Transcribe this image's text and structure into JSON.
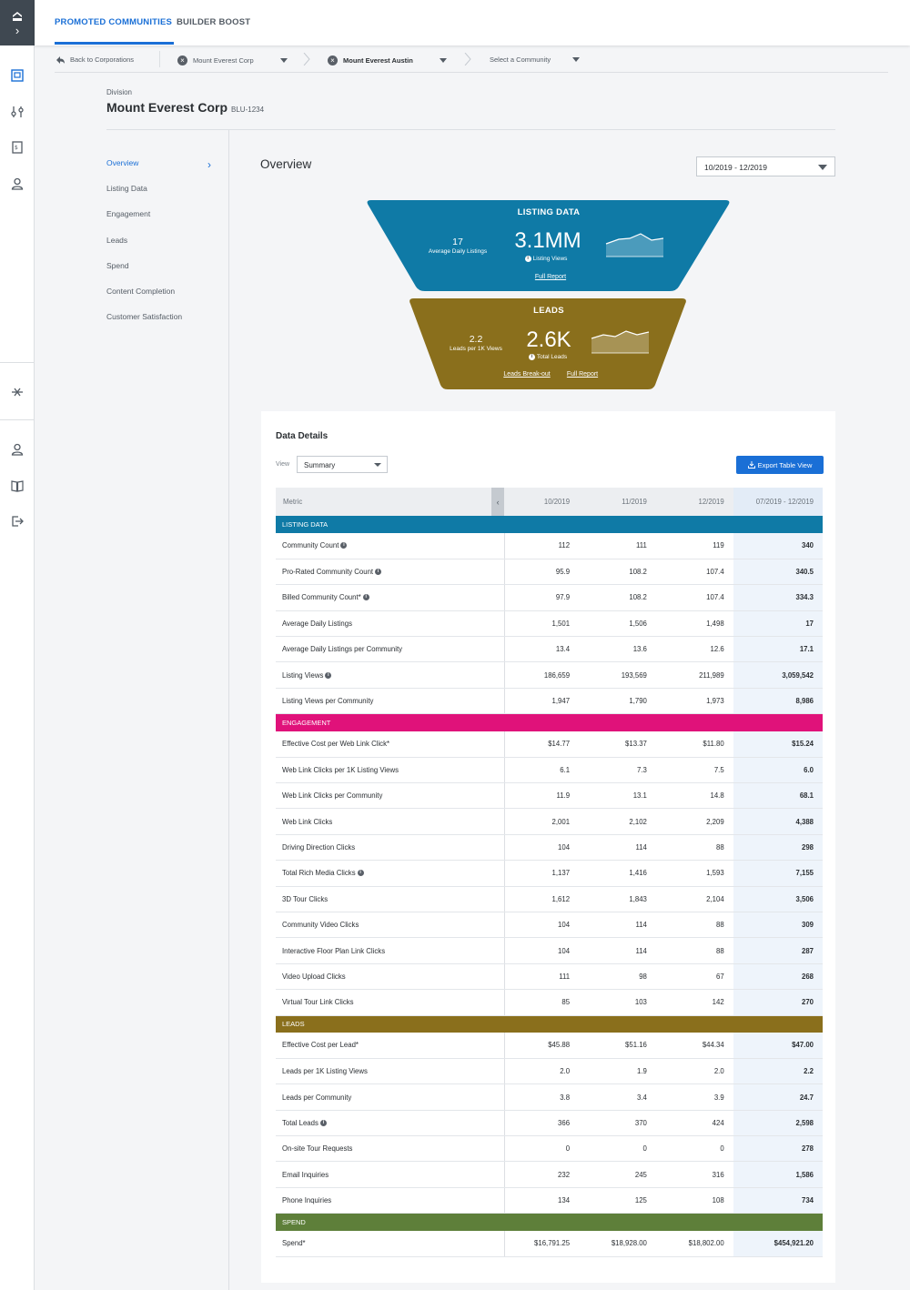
{
  "colors": {
    "accent": "#1a6fd6",
    "listing": "#0f7aa6",
    "engagement": "#e0127a",
    "leads": "#8a6f1c",
    "spend": "#5e7f3a"
  },
  "header": {
    "tabs": [
      {
        "label": "PROMOTED COMMUNITIES",
        "active": true
      },
      {
        "label": "BUILDER BOOST",
        "active": false
      }
    ]
  },
  "breadcrumb": {
    "back": "Back to Corporations",
    "corp": "Mount Everest Corp",
    "division": "Mount Everest Austin",
    "community_placeholder": "Select a Community"
  },
  "division": {
    "label": "Division",
    "name": "Mount Everest Corp",
    "id": "BLU-1234"
  },
  "sidenav": {
    "items": [
      {
        "label": "Overview",
        "active": true
      },
      {
        "label": "Listing Data"
      },
      {
        "label": "Engagement"
      },
      {
        "label": "Leads"
      },
      {
        "label": "Spend"
      },
      {
        "label": "Content Completion"
      },
      {
        "label": "Customer Satisfaction"
      }
    ]
  },
  "overview": {
    "title": "Overview",
    "date_range": "10/2019 - 12/2019"
  },
  "funnel": {
    "listing": {
      "title": "LISTING DATA",
      "left_value": "17",
      "left_label": "Average Daily Listings",
      "big_value": "3.1MM",
      "big_label": "Listing Views",
      "link": "Full Report"
    },
    "leads": {
      "title": "LEADS",
      "left_value": "2.2",
      "left_label": "Leads per 1K Views",
      "big_value": "2.6K",
      "big_label": "Total Leads",
      "link1": "Leads Break-out",
      "link2": "Full Report"
    }
  },
  "details": {
    "title": "Data Details",
    "view_label": "View",
    "view_value": "Summary",
    "export": "Export Table View",
    "columns": [
      "Metric",
      "10/2019",
      "11/2019",
      "12/2019",
      "07/2019 - 12/2019"
    ],
    "sections": [
      {
        "name": "LISTING DATA",
        "color": "#0f7aa6",
        "rows": [
          {
            "m": "Community Count",
            "info": true,
            "v": [
              "112",
              "111",
              "119",
              "340"
            ]
          },
          {
            "m": "Pro-Rated Community Count",
            "info": true,
            "v": [
              "95.9",
              "108.2",
              "107.4",
              "340.5"
            ]
          },
          {
            "m": "Billed Community Count*",
            "info": true,
            "v": [
              "97.9",
              "108.2",
              "107.4",
              "334.3"
            ]
          },
          {
            "m": "Average Daily Listings",
            "v": [
              "1,501",
              "1,506",
              "1,498",
              "17"
            ]
          },
          {
            "m": "Average Daily Listings per Community",
            "v": [
              "13.4",
              "13.6",
              "12.6",
              "17.1"
            ]
          },
          {
            "m": "Listing Views",
            "info": true,
            "v": [
              "186,659",
              "193,569",
              "211,989",
              "3,059,542"
            ]
          },
          {
            "m": "Listing Views per Community",
            "v": [
              "1,947",
              "1,790",
              "1,973",
              "8,986"
            ]
          }
        ]
      },
      {
        "name": "ENGAGEMENT",
        "color": "#e0127a",
        "rows": [
          {
            "m": "Effective Cost per Web Link Click*",
            "v": [
              "$14.77",
              "$13.37",
              "$11.80",
              "$15.24"
            ]
          },
          {
            "m": "Web Link Clicks per 1K Listing Views",
            "v": [
              "6.1",
              "7.3",
              "7.5",
              "6.0"
            ]
          },
          {
            "m": "Web Link Clicks per Community",
            "v": [
              "11.9",
              "13.1",
              "14.8",
              "68.1"
            ]
          },
          {
            "m": "Web Link Clicks",
            "v": [
              "2,001",
              "2,102",
              "2,209",
              "4,388"
            ]
          },
          {
            "m": "Driving Direction Clicks",
            "v": [
              "104",
              "114",
              "88",
              "298"
            ]
          },
          {
            "m": "Total Rich Media Clicks",
            "info": true,
            "v": [
              "1,137",
              "1,416",
              "1,593",
              "7,155"
            ]
          },
          {
            "m": "3D Tour Clicks",
            "v": [
              "1,612",
              "1,843",
              "2,104",
              "3,506"
            ]
          },
          {
            "m": "Community Video Clicks",
            "v": [
              "104",
              "114",
              "88",
              "309"
            ]
          },
          {
            "m": "Interactive Floor Plan Link Clicks",
            "v": [
              "104",
              "114",
              "88",
              "287"
            ]
          },
          {
            "m": "Video Upload Clicks",
            "v": [
              "111",
              "98",
              "67",
              "268"
            ]
          },
          {
            "m": "Virtual Tour Link Clicks",
            "v": [
              "85",
              "103",
              "142",
              "270"
            ]
          }
        ]
      },
      {
        "name": "LEADS",
        "color": "#8a6f1c",
        "rows": [
          {
            "m": "Effective Cost per Lead*",
            "v": [
              "$45.88",
              "$51.16",
              "$44.34",
              "$47.00"
            ]
          },
          {
            "m": "Leads per 1K Listing Views",
            "v": [
              "2.0",
              "1.9",
              "2.0",
              "2.2"
            ]
          },
          {
            "m": "Leads per Community",
            "v": [
              "3.8",
              "3.4",
              "3.9",
              "24.7"
            ]
          },
          {
            "m": "Total Leads",
            "info": true,
            "v": [
              "366",
              "370",
              "424",
              "2,598"
            ]
          },
          {
            "m": "On-site Tour Requests",
            "v": [
              "0",
              "0",
              "0",
              "278"
            ]
          },
          {
            "m": "Email Inquiries",
            "v": [
              "232",
              "245",
              "316",
              "1,586"
            ]
          },
          {
            "m": "Phone Inquiries",
            "v": [
              "134",
              "125",
              "108",
              "734"
            ]
          }
        ]
      },
      {
        "name": "SPEND",
        "color": "#5e7f3a",
        "rows": [
          {
            "m": "Spend*",
            "v": [
              "$16,791.25",
              "$18,928.00",
              "$18,802.00",
              "$454,921.20"
            ]
          }
        ]
      }
    ]
  }
}
